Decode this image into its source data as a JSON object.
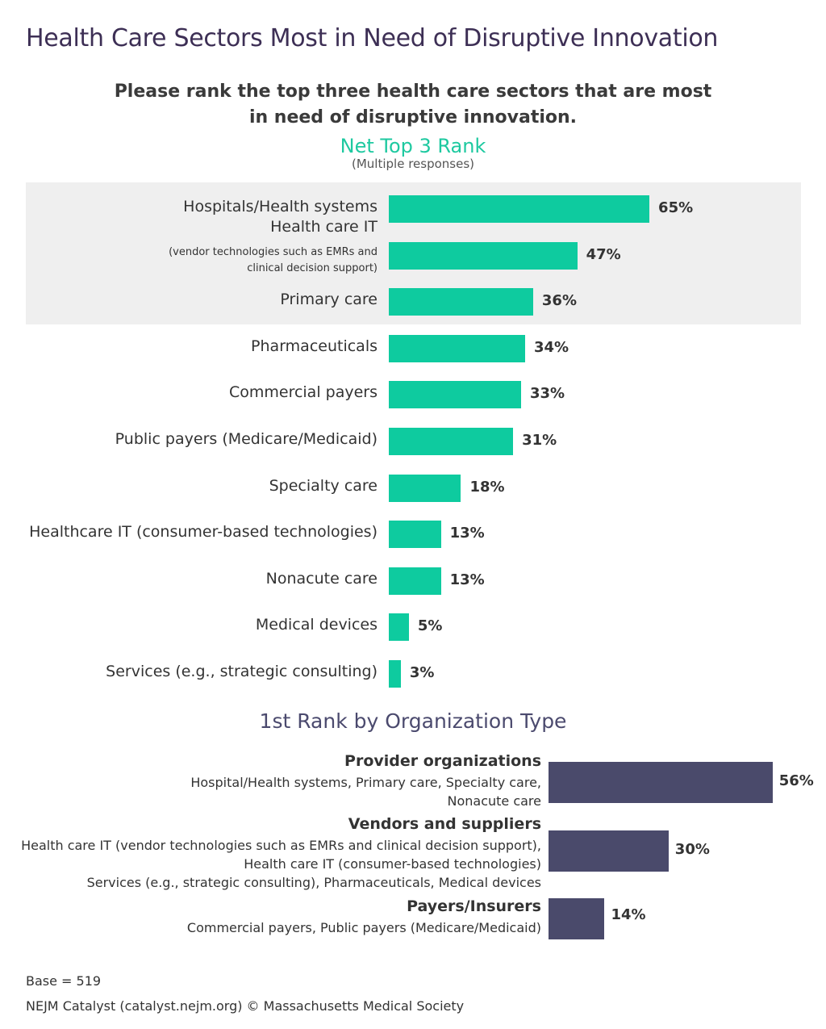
{
  "title": "Health Care Sectors Most in Need of Disruptive Innovation",
  "question_line1": "Please rank the top three health care sectors that are most",
  "question_line2": "in need of disruptive innovation.",
  "subhead": "Net Top 3 Rank",
  "subnote": "(Multiple responses)",
  "section2_title": "1st Rank by Organization Type",
  "footer": {
    "base": "Base = 519",
    "source": "NEJM Catalyst (catalyst.nejm.org) © Massachusetts Medical Society"
  },
  "colors": {
    "top_bar": "#0ecb9f",
    "org_bar": "#4a4a6b",
    "title": "#3d2f55",
    "subhead": "#1ec9a0",
    "highlight": "#efefef"
  },
  "chart_data": [
    {
      "type": "bar",
      "orientation": "horizontal",
      "title": "Net Top 3 Rank",
      "unit": "%",
      "highlighted_top_n": 3,
      "categories": [
        "Hospitals/Health systems",
        "Health care IT",
        "Primary care",
        "Pharmaceuticals",
        "Commercial payers",
        "Public payers (Medicare/Medicaid)",
        "Specialty care",
        "Healthcare IT (consumer-based technologies)",
        "Nonacute care",
        "Medical devices",
        "Services (e.g., strategic consulting)"
      ],
      "category_notes": [
        "",
        "(vendor technologies such as EMRs and|clinical decision support)",
        "",
        "",
        "",
        "",
        "",
        "",
        "",
        "",
        ""
      ],
      "values": [
        65,
        47,
        36,
        34,
        33,
        31,
        18,
        13,
        13,
        5,
        3
      ],
      "value_labels": [
        "65%",
        "47%",
        "36%",
        "34%",
        "33%",
        "31%",
        "18%",
        "13%",
        "13%",
        "5%",
        "3%"
      ]
    },
    {
      "type": "bar",
      "orientation": "horizontal",
      "title": "1st Rank by Organization Type",
      "unit": "%",
      "categories": [
        "Provider organizations",
        "Vendors and suppliers",
        "Payers/Insurers"
      ],
      "descriptions": [
        [
          "Hospital/Health systems, Primary care, Specialty care,",
          "Nonacute care"
        ],
        [
          "Health care IT (vendor technologies such as EMRs and clinical decision support),",
          "Health care IT (consumer-based technologies)",
          "Services (e.g., strategic consulting), Pharmaceuticals, Medical devices"
        ],
        [
          "Commercial payers, Public payers (Medicare/Medicaid)"
        ]
      ],
      "values": [
        56,
        30,
        14
      ],
      "value_labels": [
        "56%",
        "30%",
        "14%"
      ]
    }
  ]
}
